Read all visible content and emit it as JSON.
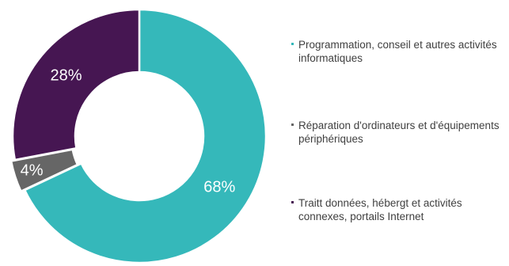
{
  "chart_data": {
    "type": "pie",
    "title": "",
    "donut": true,
    "legend_position": "right",
    "slices": [
      {
        "name": "Programmation, conseil et autres activités informatiques",
        "value": 68,
        "label": "68%",
        "color": "#35b8ba"
      },
      {
        "name": "Réparation d'ordinateurs et d'équipements périphériques",
        "value": 4,
        "label": "4%",
        "color": "#666666"
      },
      {
        "name": "Traitt données, hébergt et activités connexes, portails Internet",
        "value": 28,
        "label": "28%",
        "color": "#461652"
      }
    ]
  }
}
